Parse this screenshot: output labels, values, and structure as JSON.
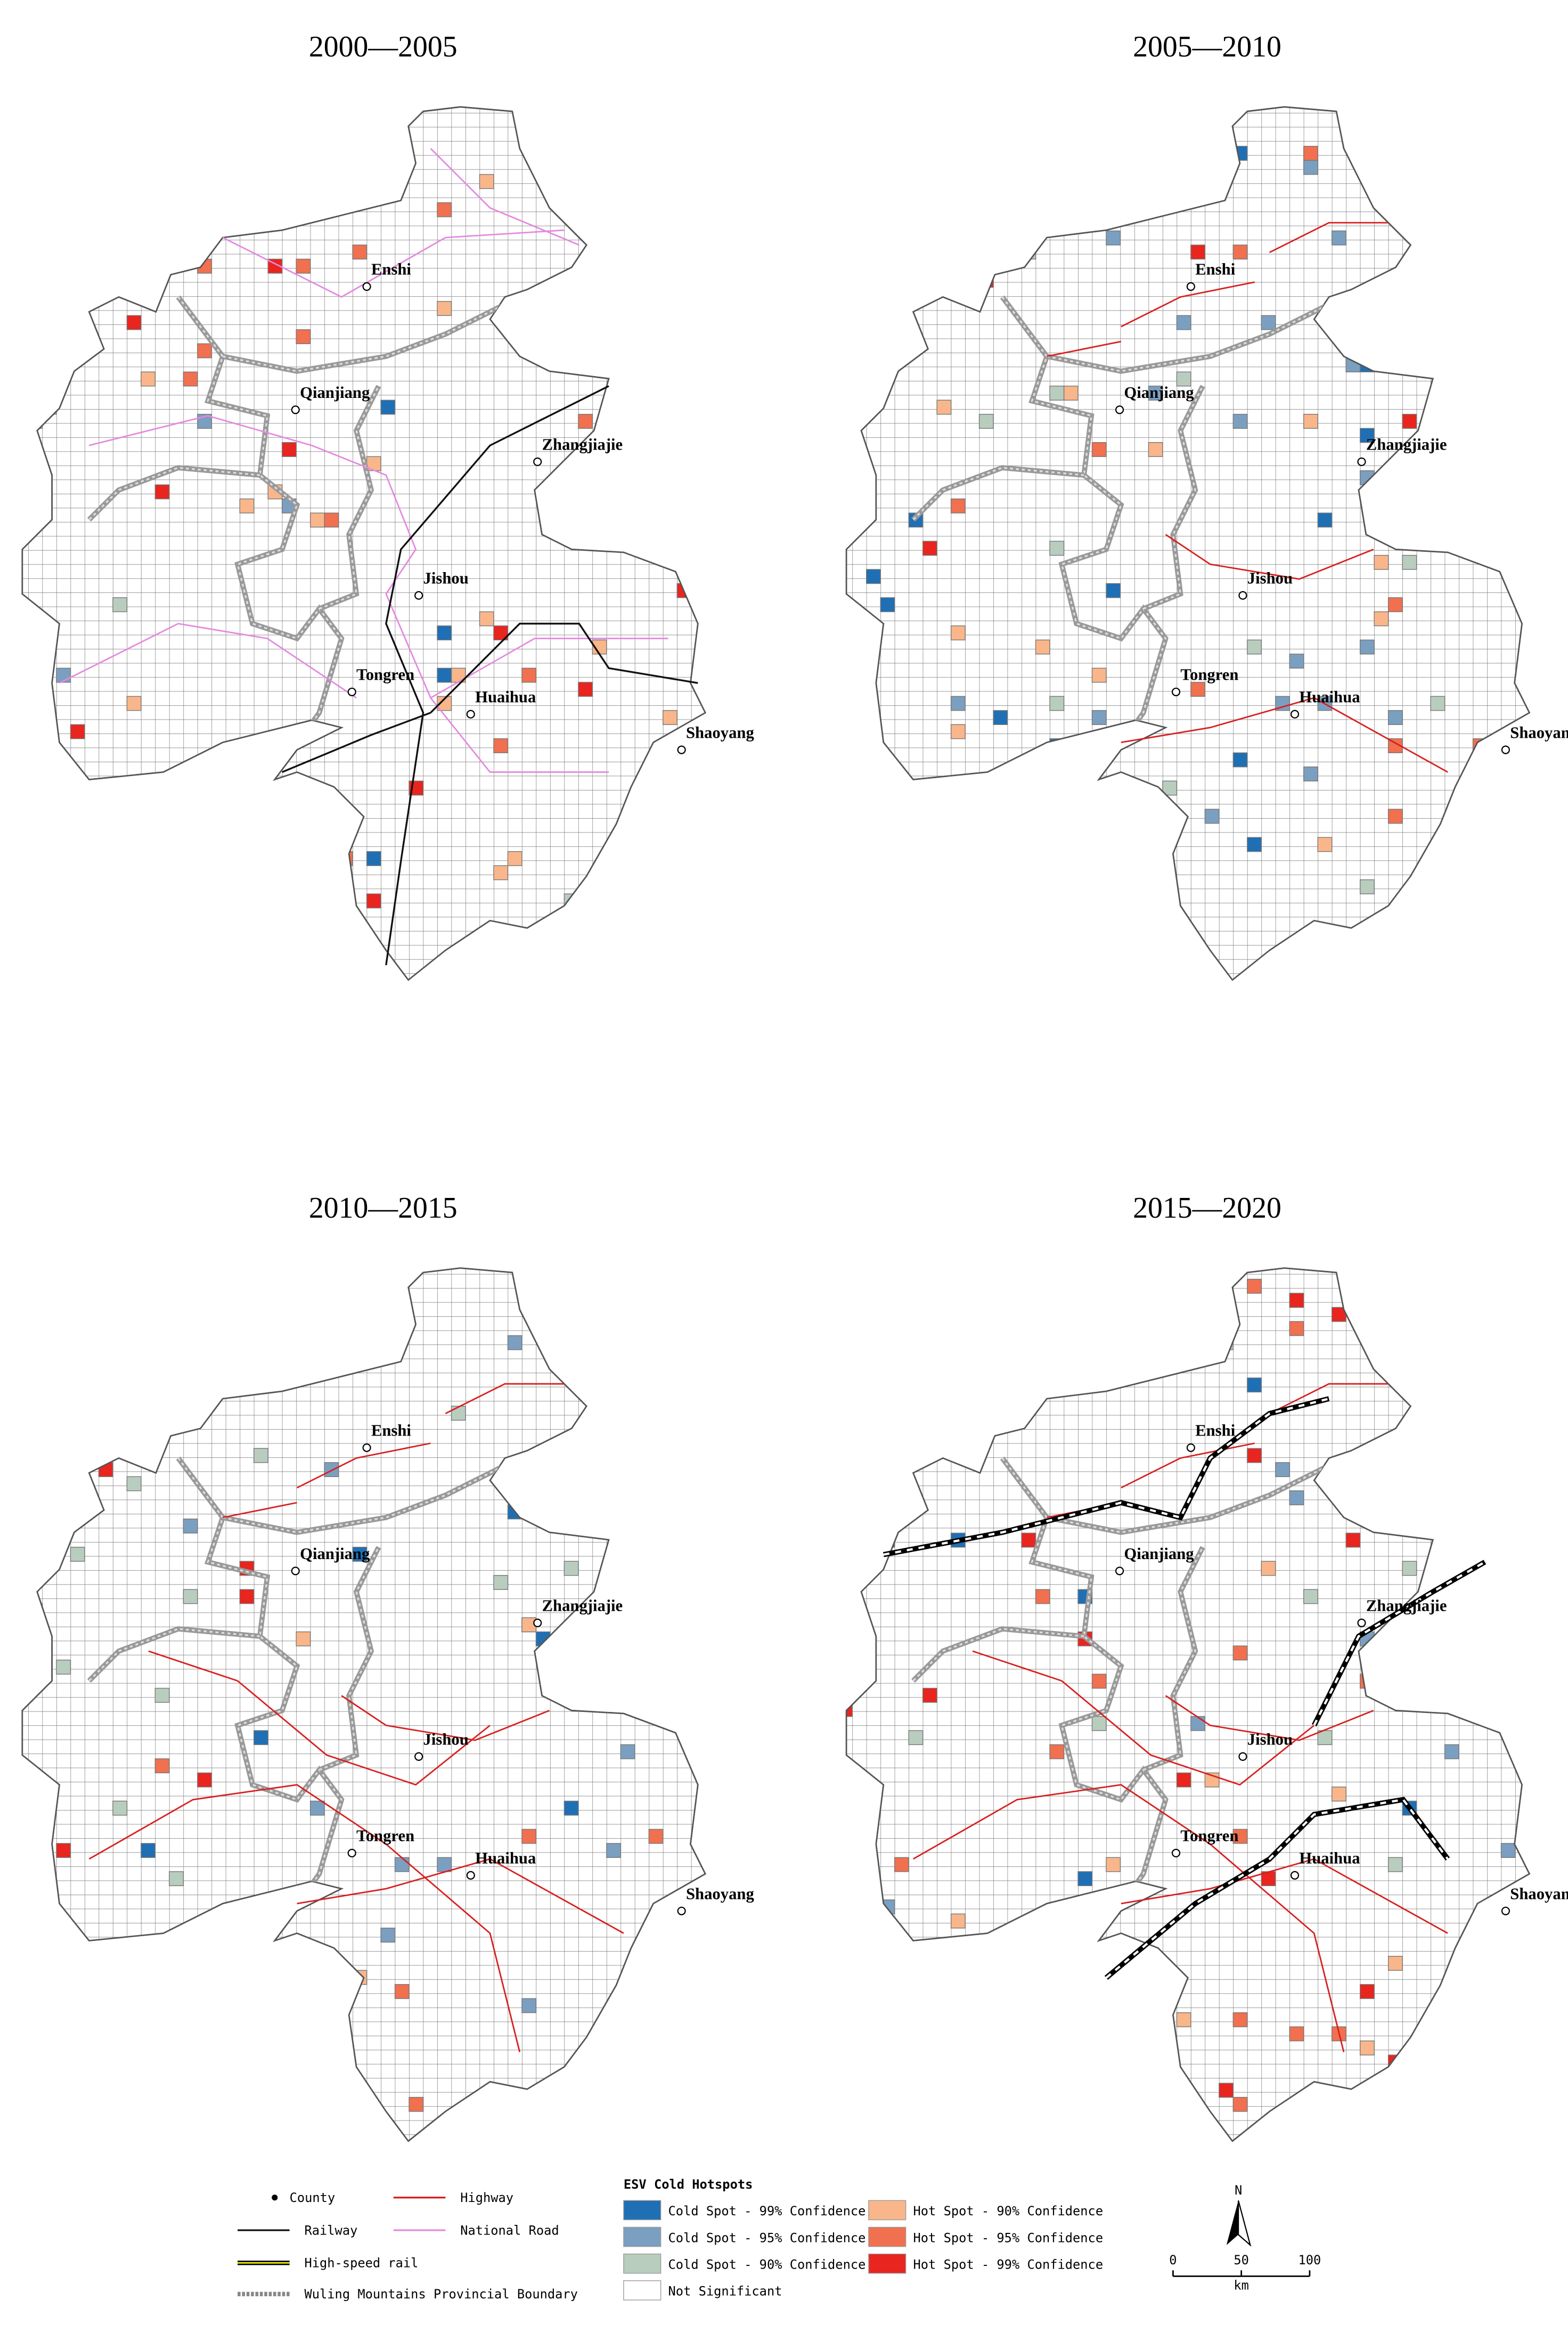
{
  "panels": [
    {
      "title": "2000—2005",
      "cities": [
        "Enshi",
        "Qianjiang",
        "Zhangjiajie",
        "Jishou",
        "Tongren",
        "Huaihua",
        "Shaoyang"
      ]
    },
    {
      "title": "2005—2010",
      "cities": [
        "Enshi",
        "Qianjiang",
        "Zhangjiajie",
        "Jishou",
        "Tongren",
        "Huaihua",
        "Shaoyang"
      ]
    },
    {
      "title": "2010—2015",
      "cities": [
        "Enshi",
        "Qianjiang",
        "Zhangjiajie",
        "Jishou",
        "Tongren",
        "Huaihua",
        "Shaoyang"
      ]
    },
    {
      "title": "2015—2020",
      "cities": [
        "Enshi",
        "Qianjiang",
        "Zhangjiajie",
        "Jishou",
        "Tongren",
        "Huaihua",
        "Shaoyang"
      ]
    }
  ],
  "legend": {
    "lines": [
      "County",
      "Highway",
      "Railway",
      "National Road",
      "High-speed rail",
      "Wuling Mountains Provincial Boundary"
    ],
    "title": "ESV Cold Hotspots",
    "items": [
      "Cold Spot - 99% Confidence",
      "Cold Spot - 95% Confidence",
      "Cold Spot - 90% Confidence",
      "Not Significant",
      "Hot Spot - 90% Confidence",
      "Hot Spot - 95% Confidence",
      "Hot Spot - 99% Confidence"
    ]
  },
  "north": "N",
  "scale": {
    "ticks": [
      0,
      50,
      100
    ],
    "unit": "km"
  }
}
